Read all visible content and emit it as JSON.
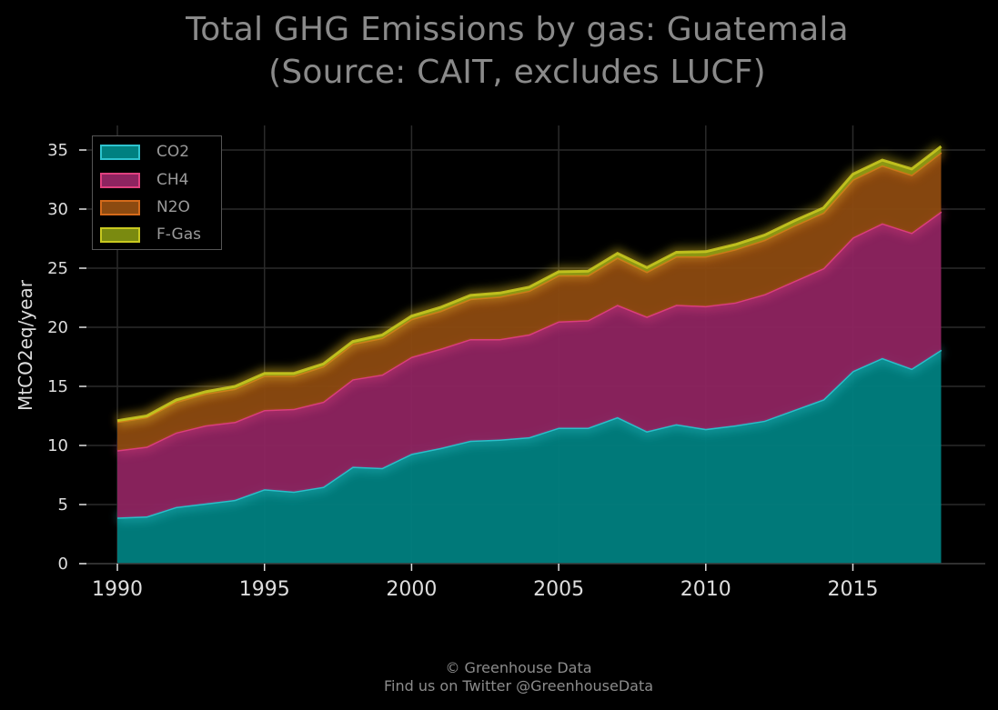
{
  "title_line1": "Total GHG Emissions by gas: Guatemala",
  "title_line2": "(Source: CAIT, excludes LUCF)",
  "footer_line1": "© Greenhouse Data",
  "footer_line2": "Find us on Twitter @GreenhouseData",
  "chart_data": {
    "type": "area",
    "stacked": true,
    "x": [
      1990,
      1991,
      1992,
      1993,
      1994,
      1995,
      1996,
      1997,
      1998,
      1999,
      2000,
      2001,
      2002,
      2003,
      2004,
      2005,
      2006,
      2007,
      2008,
      2009,
      2010,
      2011,
      2012,
      2013,
      2014,
      2015,
      2016,
      2017,
      2018
    ],
    "series": [
      {
        "name": "CO2",
        "fill": "#008080",
        "edge": "#2ec4cf",
        "values": [
          3.9,
          4.0,
          4.8,
          5.1,
          5.4,
          6.3,
          6.1,
          6.5,
          8.2,
          8.1,
          9.3,
          9.8,
          10.4,
          10.5,
          10.7,
          11.5,
          11.5,
          12.4,
          11.2,
          11.8,
          11.4,
          11.7,
          12.1,
          13.0,
          13.9,
          16.3,
          17.4,
          16.5,
          18.1
        ]
      },
      {
        "name": "CH4",
        "fill": "#8e2460",
        "edge": "#e0407f",
        "values": [
          5.7,
          5.9,
          6.3,
          6.6,
          6.6,
          6.7,
          7.0,
          7.2,
          7.4,
          7.9,
          8.2,
          8.4,
          8.6,
          8.5,
          8.7,
          9.0,
          9.1,
          9.5,
          9.7,
          10.1,
          10.4,
          10.4,
          10.7,
          10.9,
          11.1,
          11.3,
          11.4,
          11.5,
          11.7
        ]
      },
      {
        "name": "N2O",
        "fill": "#8c4a10",
        "edge": "#d46a1a",
        "values": [
          2.4,
          2.5,
          2.6,
          2.7,
          2.8,
          2.9,
          2.8,
          3.0,
          3.0,
          3.1,
          3.2,
          3.2,
          3.4,
          3.6,
          3.7,
          3.9,
          3.8,
          4.0,
          3.8,
          4.1,
          4.2,
          4.5,
          4.6,
          4.7,
          4.7,
          4.9,
          4.9,
          4.9,
          5.0
        ]
      },
      {
        "name": "F-Gas",
        "fill": "#7a8a10",
        "edge": "#c8c820",
        "values": [
          0.1,
          0.1,
          0.15,
          0.15,
          0.2,
          0.2,
          0.2,
          0.2,
          0.2,
          0.25,
          0.25,
          0.3,
          0.3,
          0.3,
          0.3,
          0.3,
          0.35,
          0.35,
          0.35,
          0.35,
          0.4,
          0.4,
          0.4,
          0.4,
          0.4,
          0.45,
          0.45,
          0.5,
          0.5
        ]
      }
    ],
    "xlabel": "",
    "ylabel": "MtCO2eq/year",
    "xlim": [
      1988.7,
      2019.5
    ],
    "ylim": [
      0,
      35
    ],
    "xticks": [
      1990,
      1995,
      2000,
      2005,
      2010,
      2015
    ],
    "yticks": [
      0,
      5,
      10,
      15,
      20,
      25,
      30,
      35
    ],
    "grid": true,
    "legend": "top-left",
    "background": "#000000",
    "grid_color": "#2a2a2a"
  }
}
